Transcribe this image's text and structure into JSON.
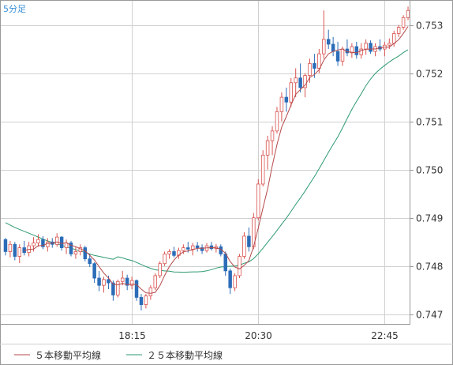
{
  "chart_data": {
    "type": "candlestick",
    "timeframe": "5分足",
    "ylim": [
      0.7468,
      0.7535
    ],
    "y_ticks": [
      "0.747",
      "0.748",
      "0.749",
      "0.750",
      "0.751",
      "0.752",
      "0.753"
    ],
    "x_ticks": [
      {
        "label": "18:15",
        "index": 27
      },
      {
        "label": "20:30",
        "index": 54
      },
      {
        "label": "22:45",
        "index": 81
      }
    ],
    "grid": true,
    "colors": {
      "up": "#d9534f",
      "down": "#2b6cb8",
      "ma5": "#b5494b",
      "ma25": "#2e9a70",
      "grid": "#d0d0d0",
      "frame": "#999999"
    },
    "candles": [
      [
        0.74855,
        0.74858,
        0.74822,
        0.7483
      ],
      [
        0.7483,
        0.74852,
        0.74818,
        0.74845
      ],
      [
        0.74845,
        0.7485,
        0.74812,
        0.7482
      ],
      [
        0.7482,
        0.74845,
        0.74806,
        0.74838
      ],
      [
        0.74838,
        0.74852,
        0.74822,
        0.74828
      ],
      [
        0.74828,
        0.7485,
        0.7482,
        0.74842
      ],
      [
        0.74842,
        0.7486,
        0.7483,
        0.74848
      ],
      [
        0.74848,
        0.74866,
        0.7484,
        0.74855
      ],
      [
        0.74855,
        0.74862,
        0.74835,
        0.7484
      ],
      [
        0.7484,
        0.74858,
        0.7483,
        0.7485
      ],
      [
        0.7485,
        0.74858,
        0.74838,
        0.74845
      ],
      [
        0.74845,
        0.74868,
        0.7484,
        0.7486
      ],
      [
        0.7486,
        0.74862,
        0.74832,
        0.74838
      ],
      [
        0.74838,
        0.74855,
        0.74825,
        0.74848
      ],
      [
        0.74848,
        0.74852,
        0.7482,
        0.74825
      ],
      [
        0.74825,
        0.7484,
        0.74815,
        0.7483
      ],
      [
        0.7483,
        0.74845,
        0.74822,
        0.74838
      ],
      [
        0.74838,
        0.74842,
        0.7481,
        0.74815
      ],
      [
        0.74815,
        0.74825,
        0.74798,
        0.74805
      ],
      [
        0.74805,
        0.74808,
        0.74765,
        0.74775
      ],
      [
        0.74775,
        0.7479,
        0.74748,
        0.7476
      ],
      [
        0.7476,
        0.74778,
        0.74745,
        0.74772
      ],
      [
        0.74772,
        0.7478,
        0.74752,
        0.74765
      ],
      [
        0.74765,
        0.7477,
        0.74728,
        0.7474
      ],
      [
        0.7474,
        0.74772,
        0.74735,
        0.74768
      ],
      [
        0.74768,
        0.7479,
        0.7476,
        0.74775
      ],
      [
        0.74775,
        0.74782,
        0.7475,
        0.7476
      ],
      [
        0.7476,
        0.74778,
        0.74752,
        0.7477
      ],
      [
        0.7477,
        0.74772,
        0.74728,
        0.74735
      ],
      [
        0.74735,
        0.74742,
        0.74708,
        0.7472
      ],
      [
        0.7472,
        0.74742,
        0.74712,
        0.74738
      ],
      [
        0.74738,
        0.7476,
        0.7473,
        0.74755
      ],
      [
        0.74755,
        0.74785,
        0.7475,
        0.7478
      ],
      [
        0.7478,
        0.7481,
        0.74775,
        0.74805
      ],
      [
        0.74805,
        0.7483,
        0.748,
        0.74825
      ],
      [
        0.74825,
        0.74835,
        0.74815,
        0.7483
      ],
      [
        0.7483,
        0.7484,
        0.74818,
        0.74822
      ],
      [
        0.74822,
        0.74838,
        0.74815,
        0.74832
      ],
      [
        0.74832,
        0.74845,
        0.74825,
        0.74838
      ],
      [
        0.74838,
        0.7485,
        0.74828,
        0.74835
      ],
      [
        0.74835,
        0.74848,
        0.74822,
        0.74842
      ],
      [
        0.74842,
        0.7485,
        0.7483,
        0.74838
      ],
      [
        0.74838,
        0.74845,
        0.74825,
        0.74832
      ],
      [
        0.74832,
        0.74848,
        0.74828,
        0.74842
      ],
      [
        0.74842,
        0.7485,
        0.74832,
        0.74836
      ],
      [
        0.74836,
        0.74846,
        0.74828,
        0.7484
      ],
      [
        0.7484,
        0.74845,
        0.7482,
        0.74825
      ],
      [
        0.74825,
        0.7483,
        0.7478,
        0.7479
      ],
      [
        0.7479,
        0.74795,
        0.74742,
        0.74755
      ],
      [
        0.74755,
        0.74785,
        0.74748,
        0.7478
      ],
      [
        0.7478,
        0.74825,
        0.74775,
        0.7482
      ],
      [
        0.7482,
        0.7487,
        0.74815,
        0.74862
      ],
      [
        0.74862,
        0.7488,
        0.7483,
        0.7484
      ],
      [
        0.7484,
        0.7491,
        0.74835,
        0.749
      ],
      [
        0.749,
        0.7498,
        0.74895,
        0.7497
      ],
      [
        0.7497,
        0.7504,
        0.74965,
        0.7503
      ],
      [
        0.7503,
        0.7507,
        0.75,
        0.7506
      ],
      [
        0.7506,
        0.7509,
        0.7503,
        0.7508
      ],
      [
        0.7508,
        0.7513,
        0.75075,
        0.7512
      ],
      [
        0.7512,
        0.7516,
        0.751,
        0.7515
      ],
      [
        0.7515,
        0.7517,
        0.7512,
        0.7514
      ],
      [
        0.7514,
        0.7519,
        0.7513,
        0.7518
      ],
      [
        0.7518,
        0.7521,
        0.7515,
        0.7519
      ],
      [
        0.7519,
        0.7522,
        0.7516,
        0.7517
      ],
      [
        0.7517,
        0.752,
        0.7515,
        0.75195
      ],
      [
        0.75195,
        0.7523,
        0.7518,
        0.7522
      ],
      [
        0.7522,
        0.7524,
        0.7519,
        0.7521
      ],
      [
        0.7521,
        0.7525,
        0.752,
        0.7524
      ],
      [
        0.7524,
        0.7533,
        0.7523,
        0.7527
      ],
      [
        0.7527,
        0.7529,
        0.7525,
        0.7526
      ],
      [
        0.7526,
        0.75275,
        0.75235,
        0.75245
      ],
      [
        0.75245,
        0.75265,
        0.75215,
        0.75225
      ],
      [
        0.75225,
        0.75255,
        0.75215,
        0.7525
      ],
      [
        0.7525,
        0.7527,
        0.75235,
        0.75242
      ],
      [
        0.75242,
        0.75262,
        0.75232,
        0.75255
      ],
      [
        0.75255,
        0.75265,
        0.7523,
        0.75238
      ],
      [
        0.75238,
        0.75262,
        0.7523,
        0.7525
      ],
      [
        0.7525,
        0.7527,
        0.75238,
        0.75262
      ],
      [
        0.75262,
        0.75268,
        0.7524,
        0.75245
      ],
      [
        0.75245,
        0.75262,
        0.75235,
        0.75255
      ],
      [
        0.75255,
        0.7527,
        0.75245,
        0.7525
      ],
      [
        0.7525,
        0.75265,
        0.75235,
        0.75258
      ],
      [
        0.75258,
        0.75272,
        0.7525,
        0.75262
      ],
      [
        0.75262,
        0.75288,
        0.75255,
        0.75282
      ],
      [
        0.75282,
        0.753,
        0.75275,
        0.75295
      ],
      [
        0.75295,
        0.7532,
        0.7529,
        0.75315
      ],
      [
        0.75315,
        0.75338,
        0.7531,
        0.7533
      ]
    ],
    "ma5_label": "５本移動平均線",
    "ma25_label": "２５本移動平均線",
    "ma5_period": 5,
    "ma25_period": 25,
    "ma25_seed": [
      0.7489,
      0.74885,
      0.7488,
      0.74876,
      0.74872,
      0.74868,
      0.74864,
      0.7486,
      0.74856,
      0.74852,
      0.74849,
      0.74846,
      0.74843,
      0.7484,
      0.74837,
      0.74834,
      0.74831,
      0.74828,
      0.74825,
      0.74822,
      0.7482,
      0.74818,
      0.74816,
      0.74814
    ]
  }
}
